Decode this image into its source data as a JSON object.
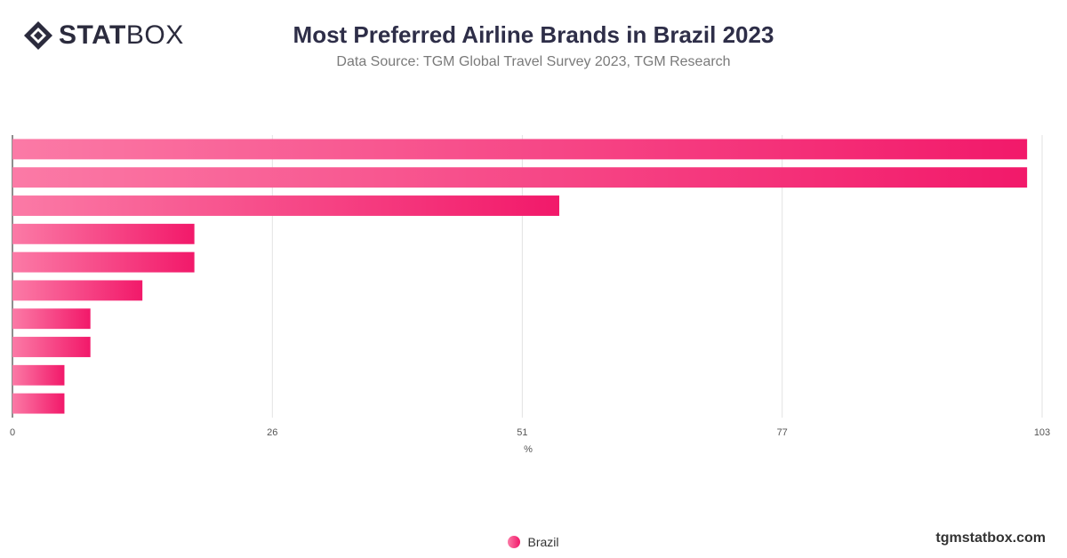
{
  "header": {
    "logo_bold": "STAT",
    "logo_light": "BOX",
    "title": "Most Preferred Airline Brands in Brazil 2023",
    "subtitle": "Data Source: TGM Global Travel Survey 2023, TGM Research"
  },
  "legend": {
    "label": "Brazil",
    "color": "#f2196a"
  },
  "footer": {
    "site": "tgmstatbox.com"
  },
  "chart_data": {
    "type": "bar",
    "orientation": "horizontal",
    "categories": [
      "",
      "",
      "",
      "",
      "",
      "",
      "",
      "",
      "",
      ""
    ],
    "series": [
      {
        "name": "Brazil",
        "values": [
          101.5,
          101.5,
          54.7,
          18.2,
          18.2,
          13.0,
          7.8,
          7.8,
          5.2,
          5.2
        ]
      }
    ],
    "xlabel": "%",
    "xlim": [
      0,
      103
    ],
    "xticks": [
      0,
      26,
      51,
      77,
      103
    ],
    "grid": true,
    "legend_position": "bottom",
    "colors": {
      "gradient_start": "#fb7aa6",
      "gradient_end": "#f2196a",
      "grid": "#e2e2e2"
    }
  }
}
